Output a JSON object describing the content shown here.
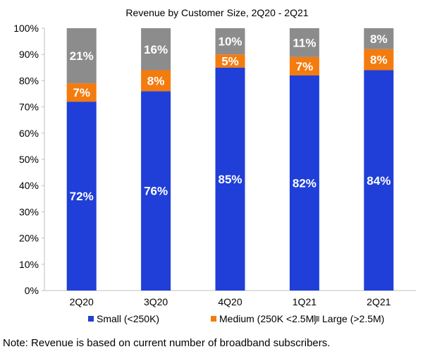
{
  "chart_data": {
    "type": "bar",
    "stacked": true,
    "normalized": true,
    "title": "Revenue by Customer Size, 2Q20 - 2Q21",
    "categories": [
      "2Q20",
      "3Q20",
      "4Q20",
      "1Q21",
      "2Q21"
    ],
    "series": [
      {
        "name": "Small (<250K)",
        "color": "#1f3fd8",
        "values": [
          72,
          76,
          85,
          82,
          84
        ],
        "labels": [
          "72%",
          "76%",
          "85%",
          "82%",
          "84%"
        ]
      },
      {
        "name": "Medium (250K <2.5M)",
        "color": "#f47b0e",
        "values": [
          7,
          8,
          5,
          7,
          8
        ],
        "labels": [
          "7%",
          "8%",
          "5%",
          "7%",
          "8%"
        ]
      },
      {
        "name": "Large (>2.5M)",
        "color": "#8c8c8c",
        "values": [
          21,
          16,
          10,
          11,
          8
        ],
        "labels": [
          "21%",
          "16%",
          "10%",
          "11%",
          "8%"
        ]
      }
    ],
    "ylim": [
      0,
      100
    ],
    "yticks": [
      "0%",
      "10%",
      "20%",
      "30%",
      "40%",
      "50%",
      "60%",
      "70%",
      "80%",
      "90%",
      "100%"
    ],
    "xlabel": "",
    "ylabel": "",
    "legend": "bottom",
    "grid": false
  },
  "note": "Note: Revenue is based on current number of broadband subscribers."
}
